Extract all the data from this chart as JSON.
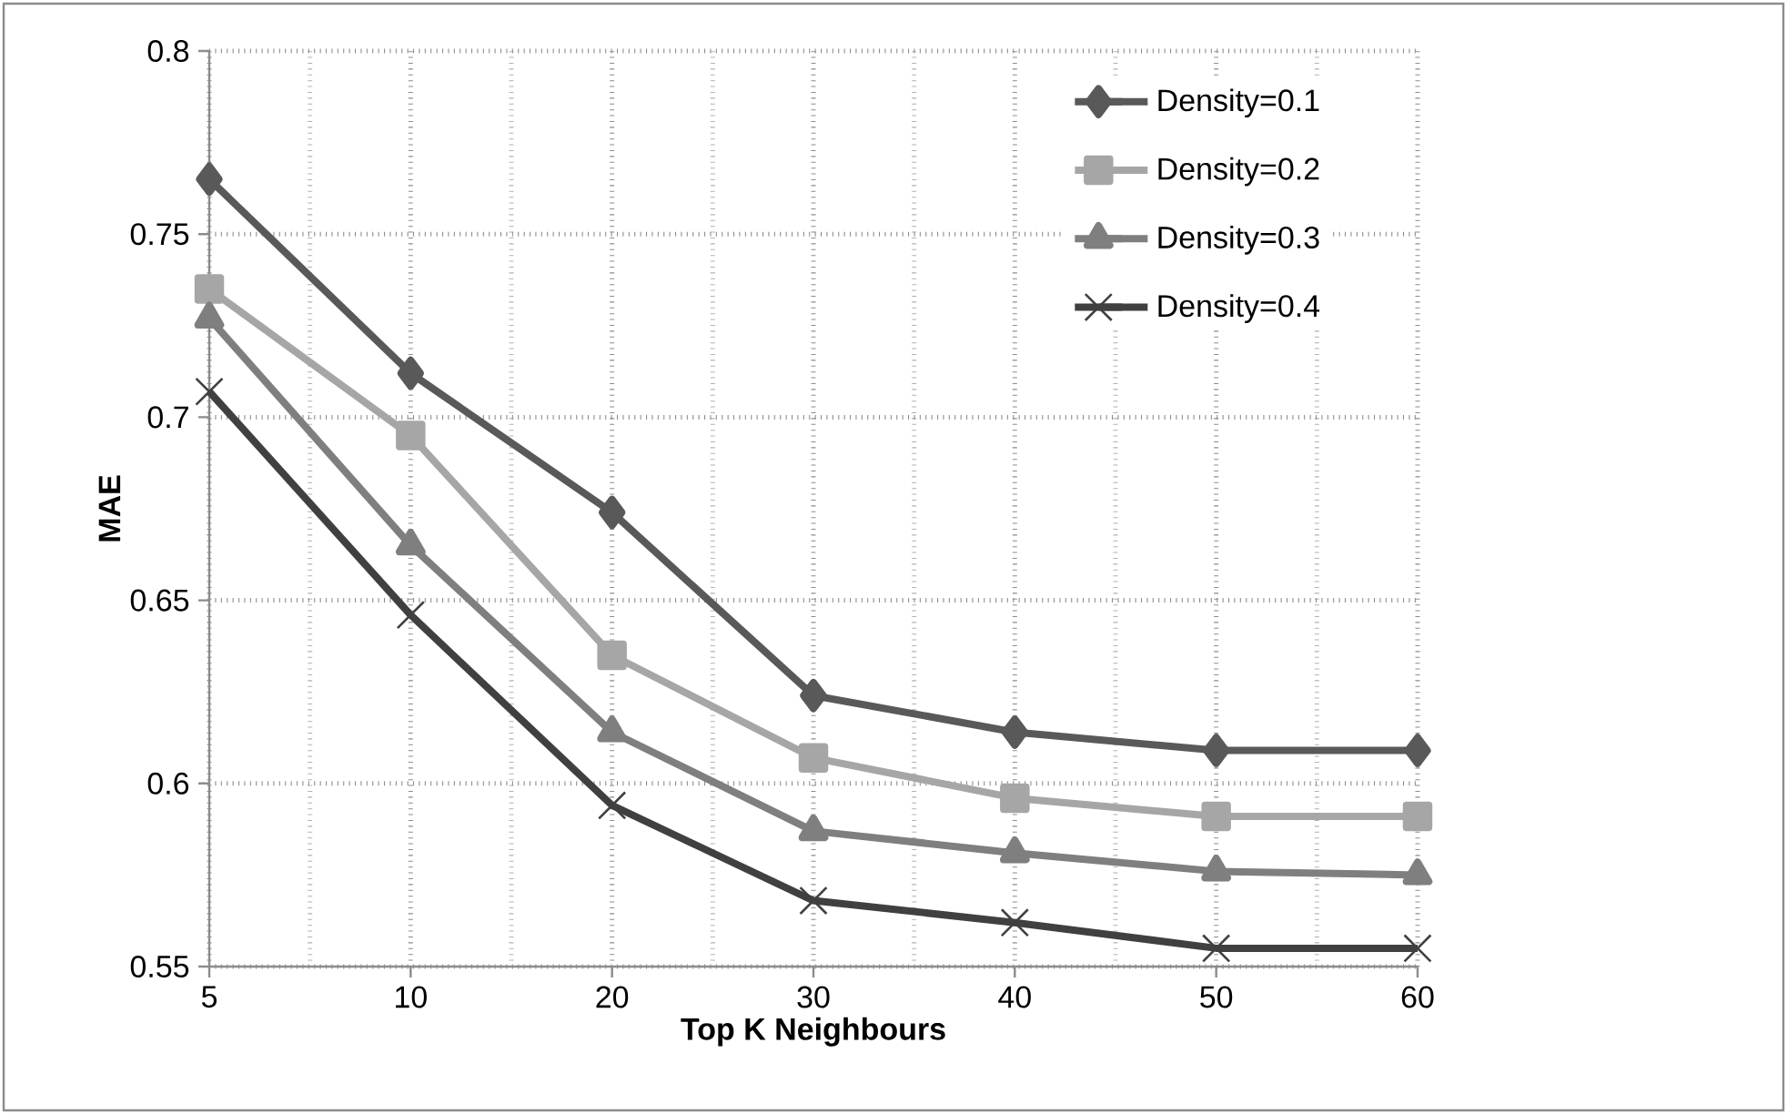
{
  "chart_data": {
    "type": "line",
    "xlabel": "Top K Neighbours",
    "ylabel": "MAE",
    "categories": [
      "5",
      "10",
      "20",
      "30",
      "40",
      "50",
      "60"
    ],
    "series": [
      {
        "name": "Density=0.1",
        "color": "#595959",
        "marker": "diamond",
        "values": [
          0.765,
          0.712,
          0.674,
          0.624,
          0.614,
          0.609,
          0.609
        ]
      },
      {
        "name": "Density=0.2",
        "color": "#a6a6a6",
        "marker": "square",
        "values": [
          0.735,
          0.695,
          0.635,
          0.607,
          0.596,
          0.591,
          0.591
        ]
      },
      {
        "name": "Density=0.3",
        "color": "#7f7f7f",
        "marker": "triangle",
        "values": [
          0.727,
          0.665,
          0.614,
          0.587,
          0.581,
          0.576,
          0.575
        ]
      },
      {
        "name": "Density=0.4",
        "color": "#404040",
        "marker": "cross",
        "values": [
          0.707,
          0.646,
          0.594,
          0.568,
          0.562,
          0.555,
          0.555
        ]
      }
    ],
    "ylim": [
      0.55,
      0.8
    ],
    "yticks": [
      0.55,
      0.6,
      0.65,
      0.7,
      0.75,
      0.8
    ],
    "grid": true,
    "legend": "top right",
    "line_style": "solid"
  }
}
